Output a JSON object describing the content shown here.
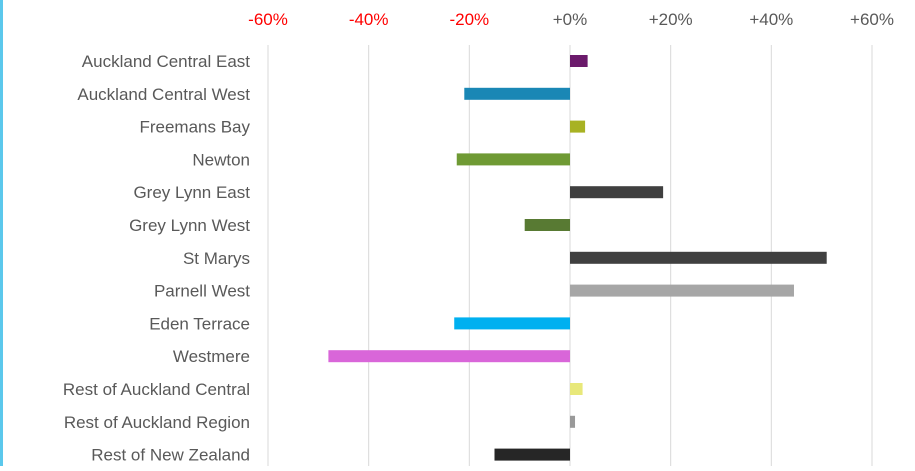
{
  "chart_data": {
    "type": "bar",
    "orientation": "horizontal",
    "title": "",
    "xlabel": "",
    "ylabel": "",
    "xlim": [
      -60,
      60
    ],
    "x_ticks": [
      -60,
      -40,
      -20,
      0,
      20,
      40,
      60
    ],
    "x_tick_labels": [
      "-60%",
      "-40%",
      "-20%",
      "+0%",
      "+20%",
      "+40%",
      "+60%"
    ],
    "x_tick_label_colors": {
      "negative": "#ff0000",
      "non_negative": "#595959"
    },
    "x_axis_position": "top",
    "grid": "vertical",
    "legend": "none",
    "categories": [
      "Auckland Central East",
      "Auckland Central West",
      "Freemans Bay",
      "Newton",
      "Grey Lynn East",
      "Grey Lynn West",
      "St Marys",
      "Parnell West",
      "Eden Terrace",
      "Westmere",
      "Rest of Auckland Central",
      "Rest of Auckland Region",
      "Rest of New Zealand"
    ],
    "values": [
      3.5,
      -21,
      3,
      -22.5,
      18.5,
      -9,
      51,
      44.5,
      -23,
      -48,
      2.5,
      1,
      -15
    ],
    "colors": [
      "#6b1a6b",
      "#1a87b5",
      "#a8b223",
      "#6f9a34",
      "#3f3f3f",
      "#587a33",
      "#404040",
      "#a6a6a6",
      "#00b0f0",
      "#d966d9",
      "#e8e87a",
      "#999999",
      "#262626"
    ]
  }
}
